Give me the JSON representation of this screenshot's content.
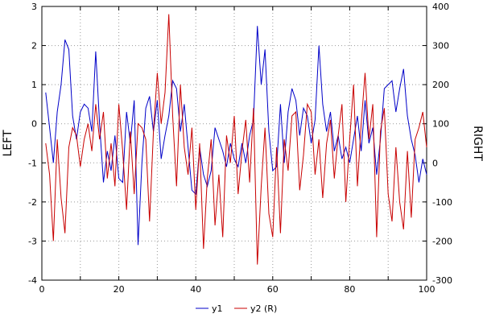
{
  "chart_data": {
    "type": "line",
    "title": "",
    "xlabel": "",
    "left_ylabel": "LEFT",
    "right_ylabel": "RIGHT",
    "xlim": [
      0,
      100
    ],
    "left_ylim": [
      -4,
      3
    ],
    "right_ylim": [
      -300,
      400
    ],
    "x_ticks": [
      0,
      20,
      40,
      60,
      80,
      100
    ],
    "x_grid_step": 10,
    "left_ticks": [
      3,
      2,
      1,
      0,
      -1,
      -2,
      -3,
      -4
    ],
    "right_ticks": [
      400,
      300,
      200,
      100,
      0,
      -100,
      -200,
      -300
    ],
    "grid": true,
    "legend_position": "bottom-center",
    "legend": [
      {
        "label": "y1",
        "color": "#0000c8"
      },
      {
        "label": "y2 (R)",
        "color": "#c80000"
      }
    ],
    "x": [
      1,
      2,
      3,
      4,
      5,
      6,
      7,
      8,
      9,
      10,
      11,
      12,
      13,
      14,
      15,
      16,
      17,
      18,
      19,
      20,
      21,
      22,
      23,
      24,
      25,
      26,
      27,
      28,
      29,
      30,
      31,
      32,
      33,
      34,
      35,
      36,
      37,
      38,
      39,
      40,
      41,
      42,
      43,
      44,
      45,
      46,
      47,
      48,
      49,
      50,
      51,
      52,
      53,
      54,
      55,
      56,
      57,
      58,
      59,
      60,
      61,
      62,
      63,
      64,
      65,
      66,
      67,
      68,
      69,
      70,
      71,
      72,
      73,
      74,
      75,
      76,
      77,
      78,
      79,
      80,
      81,
      82,
      83,
      84,
      85,
      86,
      87,
      88,
      89,
      90,
      91,
      92,
      93,
      94,
      95,
      96,
      97,
      98,
      99,
      100
    ],
    "series": [
      {
        "name": "y1",
        "axis": "left",
        "color": "#0000c8",
        "values": [
          0.8,
          -0.1,
          -1.0,
          0.3,
          1.0,
          2.15,
          1.9,
          0.2,
          -0.4,
          0.3,
          0.5,
          0.4,
          -0.2,
          1.85,
          0.0,
          -1.5,
          -0.7,
          -1.2,
          -0.3,
          -1.4,
          -1.5,
          0.3,
          -0.5,
          0.6,
          -3.1,
          -1.0,
          0.4,
          0.7,
          -0.2,
          0.6,
          -0.9,
          -0.3,
          0.2,
          1.1,
          0.9,
          -0.2,
          0.5,
          -0.6,
          -1.7,
          -1.8,
          -0.6,
          -1.3,
          -1.6,
          -1.2,
          -0.1,
          -0.4,
          -0.7,
          -1.1,
          -0.5,
          -0.9,
          -1.1,
          -0.5,
          -1.0,
          -0.3,
          0.1,
          2.5,
          1.0,
          1.9,
          -0.2,
          -1.2,
          -1.1,
          0.5,
          -1.0,
          0.3,
          0.9,
          0.6,
          -0.3,
          0.4,
          0.2,
          -0.5,
          0.1,
          2.0,
          0.5,
          -0.2,
          0.3,
          -0.7,
          -0.3,
          -0.9,
          -0.6,
          -1.0,
          -0.4,
          0.2,
          -0.7,
          0.6,
          -0.5,
          -0.1,
          -1.3,
          -0.4,
          0.9,
          1.0,
          1.1,
          0.3,
          0.9,
          1.4,
          0.2,
          -0.4,
          -0.8,
          -1.5,
          -0.9,
          -1.3
        ]
      },
      {
        "name": "y2 (R)",
        "axis": "right",
        "color": "#c80000",
        "values": [
          50,
          -30,
          -200,
          60,
          -90,
          -180,
          40,
          90,
          70,
          -10,
          60,
          100,
          30,
          150,
          60,
          130,
          -40,
          50,
          -60,
          150,
          30,
          -120,
          80,
          -80,
          100,
          90,
          60,
          -150,
          80,
          230,
          100,
          180,
          380,
          120,
          -60,
          200,
          40,
          -30,
          90,
          -120,
          50,
          -220,
          -40,
          60,
          -160,
          -30,
          -190,
          70,
          0,
          120,
          -80,
          30,
          110,
          -50,
          140,
          -260,
          -60,
          90,
          -130,
          -190,
          40,
          -180,
          60,
          -20,
          120,
          130,
          -70,
          20,
          150,
          130,
          -30,
          60,
          -90,
          50,
          110,
          -40,
          70,
          150,
          -100,
          60,
          200,
          -60,
          100,
          230,
          60,
          150,
          -190,
          80,
          140,
          -80,
          -150,
          40,
          -100,
          -170,
          30,
          -140,
          60,
          90,
          130,
          40
        ]
      }
    ]
  }
}
